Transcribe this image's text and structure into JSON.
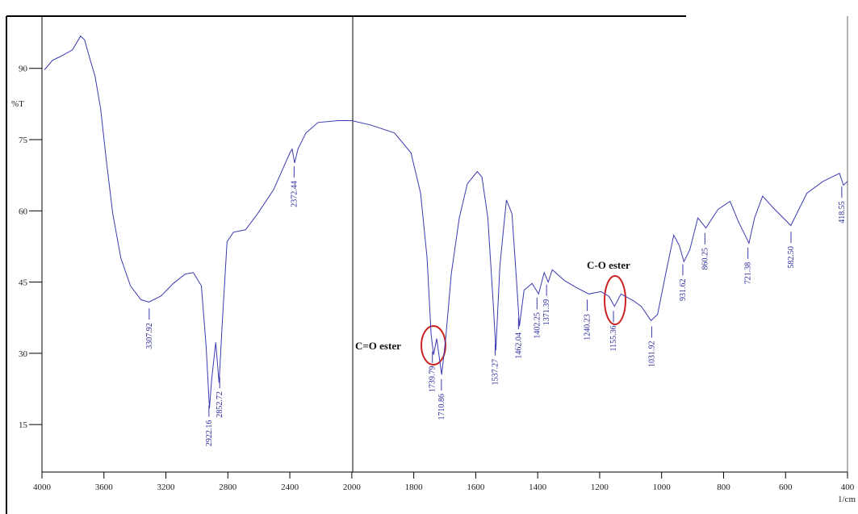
{
  "chart_data": {
    "type": "line",
    "y_label": "%T",
    "x_label": "1/cm",
    "xlim": [
      4000,
      400
    ],
    "xticks": [
      4000,
      3600,
      3200,
      2800,
      2400,
      2000,
      1800,
      1600,
      1400,
      1200,
      1000,
      800,
      600,
      400
    ],
    "ylim": [
      5,
      101
    ],
    "yticks": [
      15,
      30,
      45,
      60,
      75,
      90
    ],
    "x": [
      3984,
      3932,
      3880,
      3803,
      3751,
      3725,
      3688,
      3657,
      3621,
      3584,
      3543,
      3491,
      3429,
      3361,
      3309,
      3231,
      3153,
      3075,
      3023,
      2971,
      2940,
      2919,
      2904,
      2878,
      2857,
      2836,
      2805,
      2764,
      2686,
      2608,
      2504,
      2400,
      2385,
      2369,
      2348,
      2296,
      2218,
      2088,
      2000,
      1940,
      1862,
      1809,
      1778,
      1757,
      1744,
      1736,
      1726,
      1710,
      1697,
      1679,
      1653,
      1627,
      1595,
      1580,
      1561,
      1543,
      1535,
      1522,
      1501,
      1483,
      1469,
      1459,
      1444,
      1418,
      1397,
      1379,
      1366,
      1353,
      1313,
      1274,
      1235,
      1196,
      1170,
      1152,
      1131,
      1092,
      1066,
      1034,
      1013,
      987,
      961,
      943,
      928,
      909,
      883,
      857,
      818,
      779,
      752,
      718,
      700,
      674,
      635,
      583,
      557,
      531,
      479,
      426,
      413,
      400
    ],
    "series": [
      {
        "color": "#3a3ab0",
        "values": [
          89.7,
          91.7,
          92.5,
          93.9,
          96.8,
          96,
          91.7,
          88.3,
          81.5,
          70.5,
          59.4,
          50.1,
          44.2,
          41.3,
          40.8,
          42.1,
          44.7,
          46.7,
          47,
          44.2,
          31.4,
          18.4,
          24.6,
          32.3,
          23.8,
          36.5,
          53.5,
          55.5,
          56,
          59.4,
          64.5,
          72.2,
          73,
          70.1,
          73,
          76.4,
          78.6,
          79,
          79,
          78.1,
          76.4,
          72.2,
          63.7,
          50.1,
          34,
          29.7,
          33.1,
          25.5,
          33.1,
          46.7,
          58.5,
          65.7,
          68.3,
          67.1,
          58.5,
          39.9,
          30.6,
          48.4,
          62.3,
          59.4,
          45.9,
          35.7,
          43.3,
          44.7,
          42.5,
          47,
          45,
          47.6,
          45.3,
          43.8,
          42.5,
          43,
          42,
          39.9,
          42.5,
          41.1,
          39.9,
          36.9,
          38.2,
          46.7,
          54.9,
          52.7,
          49.3,
          51.8,
          58.5,
          56.4,
          60.3,
          62,
          57.7,
          53.2,
          58.5,
          63.1,
          60.3,
          56.9,
          60.3,
          63.7,
          66.2,
          67.9,
          65.4,
          66.2
        ]
      }
    ],
    "peaks": [
      3307.92,
      2922.16,
      2852.72,
      2372.44,
      1739.79,
      1710.86,
      1537.27,
      1462.04,
      1402.25,
      1371.39,
      1240.23,
      1155.36,
      1031.92,
      931.62,
      860.25,
      721.38,
      {
        "value": 582.5,
        "label": "582.50"
      },
      418.55
    ],
    "annotations": [
      "C=O ester",
      "C-O ester"
    ]
  }
}
